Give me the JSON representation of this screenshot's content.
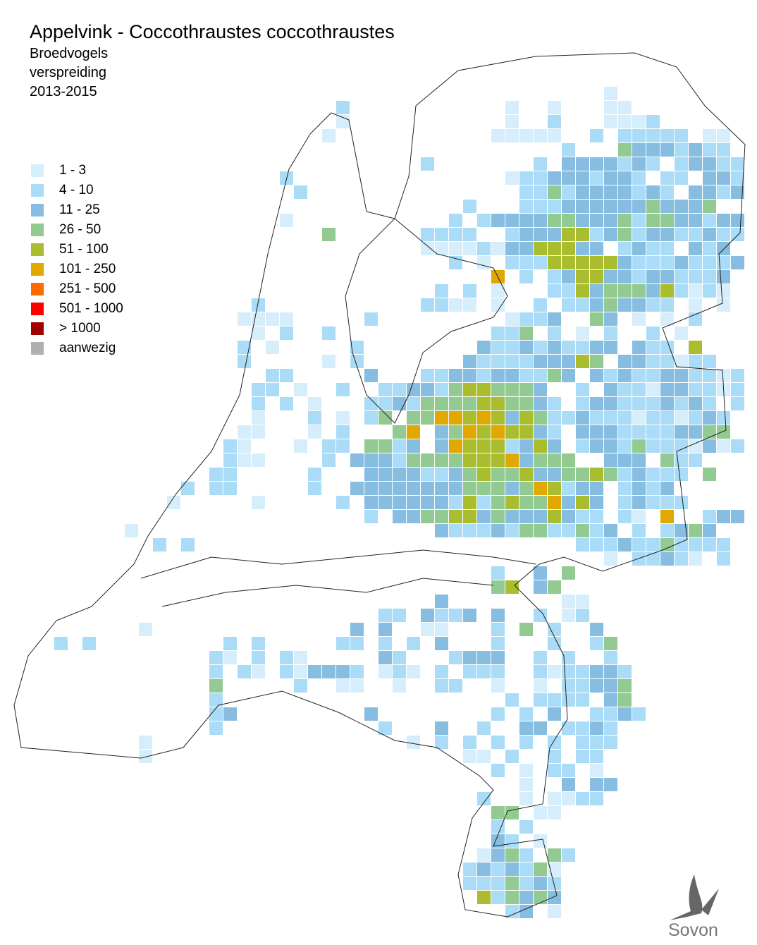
{
  "title": "Appelvink - Coccothraustes coccothraustes",
  "subtitle": [
    "Broedvogels",
    "verspreiding",
    "2013-2015"
  ],
  "legend": [
    {
      "label": "1 - 3",
      "color": "#d6eefc"
    },
    {
      "label": "4 - 10",
      "color": "#aadcf7"
    },
    {
      "label": "11 - 25",
      "color": "#86bde0"
    },
    {
      "label": "26 - 50",
      "color": "#92ca92"
    },
    {
      "label": "51 - 100",
      "color": "#a9bd2f"
    },
    {
      "label": "101 - 250",
      "color": "#e0a800"
    },
    {
      "label": "251 - 500",
      "color": "#ff6a00"
    },
    {
      "label": "501 - 1000",
      "color": "#ff0000"
    },
    {
      "label": "> 1000",
      "color": "#a00000"
    },
    {
      "label": "aanwezig",
      "color": "#b0b0b0"
    }
  ],
  "logo": "Sovon"
}
